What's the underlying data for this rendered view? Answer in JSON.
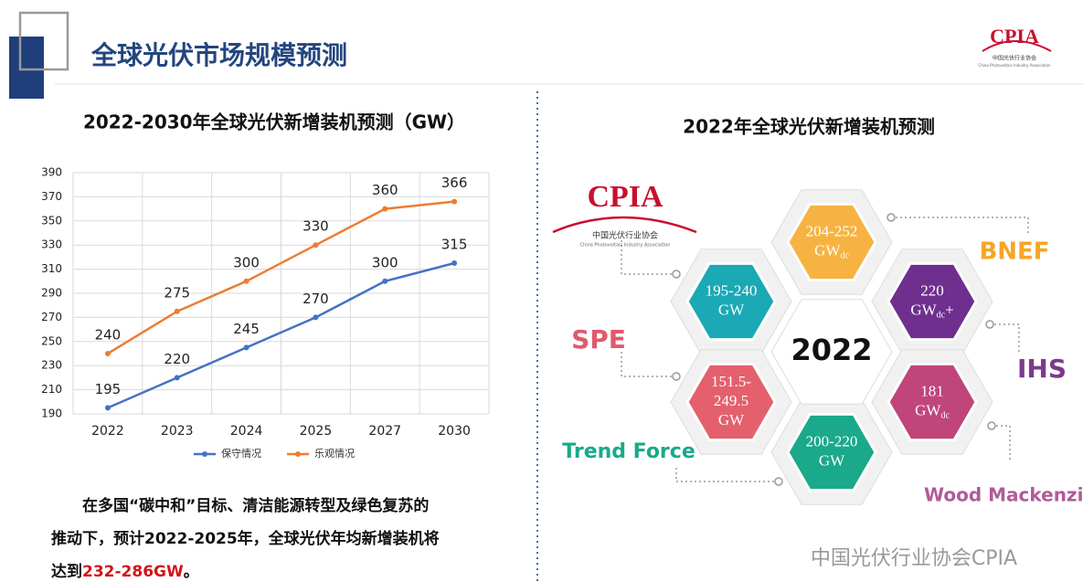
{
  "header": {
    "title": "全球光伏市场规模预测"
  },
  "logo": {
    "name": "CPIA",
    "cn": "中国光伏行业协会",
    "en": "China Photovoltaic Industry Association"
  },
  "chart_data": {
    "type": "line",
    "title": "2022-2030年全球光伏新增装机预测（GW）",
    "categories": [
      "2022",
      "2023",
      "2024",
      "2025",
      "2027",
      "2030"
    ],
    "series": [
      {
        "name": "保守情况",
        "color": "#4472c4",
        "values": [
          195,
          220,
          245,
          270,
          300,
          315
        ]
      },
      {
        "name": "乐观情况",
        "color": "#ed7d31",
        "values": [
          240,
          275,
          300,
          330,
          360,
          366
        ]
      }
    ],
    "ylim": [
      190,
      390
    ],
    "yticks": [
      190,
      210,
      230,
      250,
      270,
      290,
      310,
      330,
      350,
      370,
      390
    ],
    "grid": true,
    "legend": "bottom"
  },
  "note": {
    "lines": [
      "在多国“碳中和”目标、清洁能源转型及绿色复苏的",
      "推动下，预计2022-2025年，全球光伏年均新增装机将",
      "达到"
    ],
    "highlight": "232-286GW",
    "end": "。"
  },
  "diagram": {
    "title": "2022年全球光伏新增装机预测",
    "center": "2022",
    "nodes": [
      {
        "lines": [
          "204-252",
          "GW"
        ],
        "sub": "dc",
        "source": "BNEF"
      },
      {
        "lines": [
          "195-240",
          "GW"
        ],
        "source": "CPIA"
      },
      {
        "lines": [
          "220",
          "GW"
        ],
        "sub": "dc",
        "suffix": "+",
        "source": "IHS"
      },
      {
        "lines": [
          "151.5-",
          "249.5",
          "GW"
        ],
        "source": "SPE"
      },
      {
        "lines": [
          "181",
          "GW"
        ],
        "sub": "dc",
        "source": "Wood Mackenzie"
      },
      {
        "lines": [
          "200-220",
          "GW"
        ],
        "source": "Trend Force"
      }
    ]
  },
  "watermark": "中国光伏行业协会CPIA"
}
